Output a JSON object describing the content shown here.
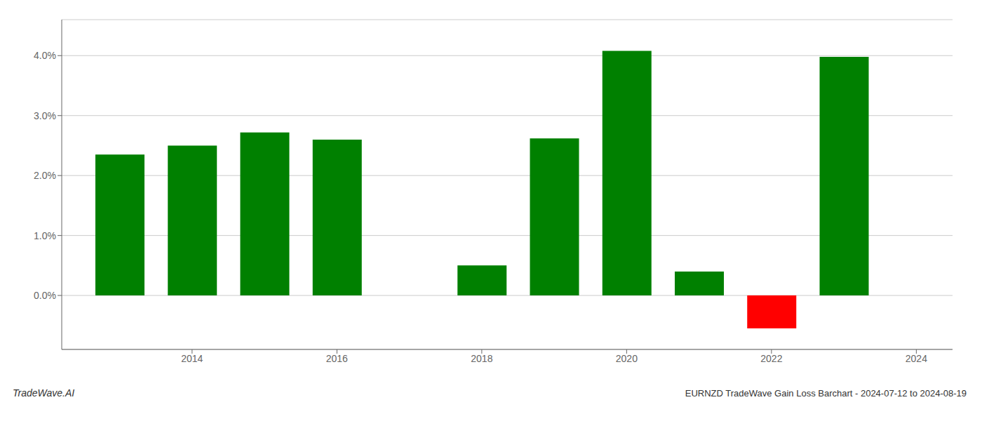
{
  "chart_data": {
    "type": "bar",
    "title": "EURNZD TradeWave Gain Loss Barchart - 2024-07-12 to 2024-08-19",
    "annotations": [
      "TradeWave.AI"
    ],
    "x": [
      2013,
      2014,
      2015,
      2016,
      2018,
      2019,
      2020,
      2021,
      2022,
      2023
    ],
    "values": [
      0.0235,
      0.025,
      0.0272,
      0.026,
      0.005,
      0.0262,
      0.0408,
      0.004,
      -0.0055,
      0.0398
    ],
    "colors": [
      "#008000",
      "#008000",
      "#008000",
      "#008000",
      "#008000",
      "#008000",
      "#008000",
      "#008000",
      "#ff0000",
      "#008000"
    ],
    "xlim": [
      2012.2,
      2024.5
    ],
    "xticks": [
      2014,
      2016,
      2018,
      2020,
      2022,
      2024
    ],
    "ylim": [
      -0.009,
      0.046
    ],
    "yticks": [
      {
        "value": 0.0,
        "label": "0.0%"
      },
      {
        "value": 0.01,
        "label": "1.0%"
      },
      {
        "value": 0.02,
        "label": "2.0%"
      },
      {
        "value": 0.03,
        "label": "3.0%"
      },
      {
        "value": 0.04,
        "label": "4.0%"
      }
    ],
    "grid": true
  }
}
